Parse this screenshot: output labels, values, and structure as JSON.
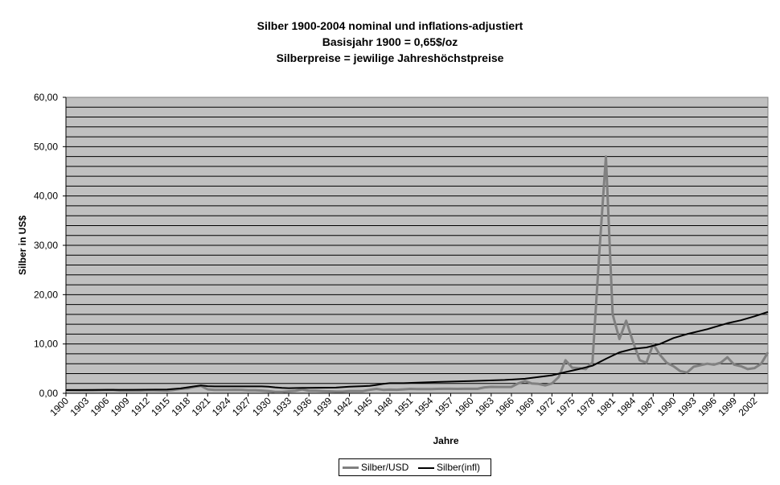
{
  "chart_data": {
    "type": "line",
    "title_lines": [
      "Silber 1900-2004 nominal und inflations-adjustiert",
      "Basisjahr 1900 = 0,65$/oz",
      "Silberpreise = jewilige Jahreshöchstpreise"
    ],
    "xlabel": "Jahre",
    "ylabel": "Silber in US$",
    "ylim": [
      0,
      60
    ],
    "yticks": [
      "0,00",
      "10,00",
      "20,00",
      "30,00",
      "40,00",
      "50,00",
      "60,00"
    ],
    "xlim": [
      1900,
      2004
    ],
    "xticks": [
      "1900",
      "1903",
      "1906",
      "1909",
      "1912",
      "1915",
      "1918",
      "1921",
      "1924",
      "1927",
      "1930",
      "1933",
      "1936",
      "1939",
      "1942",
      "1945",
      "1948",
      "1951",
      "1954",
      "1957",
      "1960",
      "1963",
      "1966",
      "1969",
      "1972",
      "1975",
      "1978",
      "1981",
      "1984",
      "1987",
      "1990",
      "1993",
      "1996",
      "1999",
      "2002"
    ],
    "grid": "horizontal",
    "legend_position": "bottom",
    "series": [
      {
        "name": "Silber/USD",
        "color": "#808080",
        "points": [
          [
            1900,
            0.65
          ],
          [
            1901,
            0.64
          ],
          [
            1902,
            0.6
          ],
          [
            1903,
            0.6
          ],
          [
            1904,
            0.6
          ],
          [
            1905,
            0.65
          ],
          [
            1906,
            0.7
          ],
          [
            1907,
            0.7
          ],
          [
            1908,
            0.55
          ],
          [
            1909,
            0.55
          ],
          [
            1910,
            0.55
          ],
          [
            1911,
            0.55
          ],
          [
            1912,
            0.63
          ],
          [
            1913,
            0.63
          ],
          [
            1914,
            0.58
          ],
          [
            1915,
            0.55
          ],
          [
            1916,
            0.7
          ],
          [
            1917,
            0.9
          ],
          [
            1918,
            1.0
          ],
          [
            1919,
            1.3
          ],
          [
            1920,
            1.5
          ],
          [
            1921,
            0.8
          ],
          [
            1922,
            0.7
          ],
          [
            1923,
            0.7
          ],
          [
            1924,
            0.7
          ],
          [
            1925,
            0.72
          ],
          [
            1926,
            0.68
          ],
          [
            1927,
            0.6
          ],
          [
            1928,
            0.6
          ],
          [
            1929,
            0.55
          ],
          [
            1930,
            0.45
          ],
          [
            1931,
            0.3
          ],
          [
            1932,
            0.3
          ],
          [
            1933,
            0.4
          ],
          [
            1934,
            0.5
          ],
          [
            1935,
            0.8
          ],
          [
            1936,
            0.5
          ],
          [
            1937,
            0.5
          ],
          [
            1938,
            0.45
          ],
          [
            1939,
            0.4
          ],
          [
            1940,
            0.35
          ],
          [
            1941,
            0.35
          ],
          [
            1942,
            0.45
          ],
          [
            1943,
            0.45
          ],
          [
            1944,
            0.45
          ],
          [
            1945,
            0.7
          ],
          [
            1946,
            0.9
          ],
          [
            1947,
            0.7
          ],
          [
            1948,
            0.75
          ],
          [
            1949,
            0.72
          ],
          [
            1950,
            0.8
          ],
          [
            1951,
            0.9
          ],
          [
            1952,
            0.85
          ],
          [
            1953,
            0.85
          ],
          [
            1954,
            0.85
          ],
          [
            1955,
            0.9
          ],
          [
            1956,
            0.91
          ],
          [
            1957,
            0.91
          ],
          [
            1958,
            0.9
          ],
          [
            1959,
            0.91
          ],
          [
            1960,
            0.91
          ],
          [
            1961,
            0.92
          ],
          [
            1962,
            1.2
          ],
          [
            1963,
            1.3
          ],
          [
            1964,
            1.29
          ],
          [
            1965,
            1.29
          ],
          [
            1966,
            1.29
          ],
          [
            1967,
            2.0
          ],
          [
            1968,
            2.5
          ],
          [
            1969,
            2.0
          ],
          [
            1970,
            1.9
          ],
          [
            1971,
            1.6
          ],
          [
            1972,
            2.0
          ],
          [
            1973,
            3.3
          ],
          [
            1974,
            6.7
          ],
          [
            1975,
            5.2
          ],
          [
            1976,
            5.1
          ],
          [
            1977,
            4.9
          ],
          [
            1978,
            6.3
          ],
          [
            1979,
            28.0
          ],
          [
            1980,
            48.0
          ],
          [
            1981,
            16.0
          ],
          [
            1982,
            11.0
          ],
          [
            1983,
            14.7
          ],
          [
            1984,
            10.5
          ],
          [
            1985,
            6.7
          ],
          [
            1986,
            6.2
          ],
          [
            1987,
            10.0
          ],
          [
            1988,
            7.8
          ],
          [
            1989,
            6.2
          ],
          [
            1990,
            5.5
          ],
          [
            1991,
            4.5
          ],
          [
            1992,
            4.2
          ],
          [
            1993,
            5.4
          ],
          [
            1994,
            5.7
          ],
          [
            1995,
            6.0
          ],
          [
            1996,
            5.8
          ],
          [
            1997,
            6.2
          ],
          [
            1998,
            7.3
          ],
          [
            1999,
            5.8
          ],
          [
            2000,
            5.5
          ],
          [
            2001,
            4.9
          ],
          [
            2002,
            5.1
          ],
          [
            2003,
            6.0
          ],
          [
            2004,
            8.3
          ]
        ]
      },
      {
        "name": "Silber(infl)",
        "color": "#000000",
        "points": [
          [
            1900,
            0.65
          ],
          [
            1905,
            0.68
          ],
          [
            1910,
            0.72
          ],
          [
            1915,
            0.78
          ],
          [
            1917,
            1.0
          ],
          [
            1918,
            1.2
          ],
          [
            1919,
            1.4
          ],
          [
            1920,
            1.6
          ],
          [
            1921,
            1.45
          ],
          [
            1922,
            1.4
          ],
          [
            1925,
            1.4
          ],
          [
            1929,
            1.4
          ],
          [
            1930,
            1.35
          ],
          [
            1931,
            1.2
          ],
          [
            1932,
            1.1
          ],
          [
            1933,
            1.05
          ],
          [
            1935,
            1.1
          ],
          [
            1940,
            1.15
          ],
          [
            1942,
            1.35
          ],
          [
            1944,
            1.45
          ],
          [
            1945,
            1.5
          ],
          [
            1946,
            1.7
          ],
          [
            1947,
            1.9
          ],
          [
            1948,
            2.05
          ],
          [
            1950,
            2.05
          ],
          [
            1955,
            2.3
          ],
          [
            1960,
            2.5
          ],
          [
            1965,
            2.7
          ],
          [
            1968,
            2.95
          ],
          [
            1970,
            3.3
          ],
          [
            1972,
            3.65
          ],
          [
            1974,
            4.3
          ],
          [
            1976,
            4.9
          ],
          [
            1978,
            5.6
          ],
          [
            1980,
            7.0
          ],
          [
            1982,
            8.3
          ],
          [
            1984,
            9.0
          ],
          [
            1986,
            9.3
          ],
          [
            1988,
            10.0
          ],
          [
            1990,
            11.2
          ],
          [
            1992,
            12.0
          ],
          [
            1995,
            13.0
          ],
          [
            1998,
            14.2
          ],
          [
            2000,
            14.8
          ],
          [
            2002,
            15.6
          ],
          [
            2004,
            16.5
          ]
        ]
      }
    ]
  }
}
